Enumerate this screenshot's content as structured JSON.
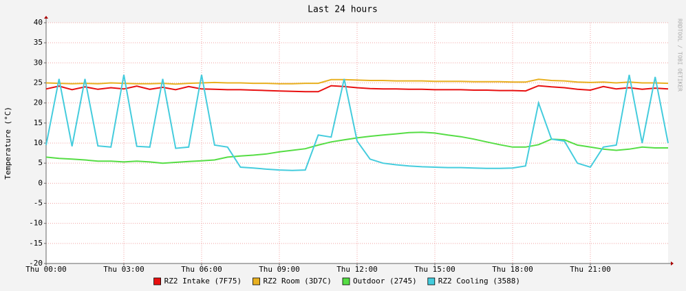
{
  "chart_data": {
    "type": "line",
    "title": "Last 24 hours",
    "ylabel": "Temperature (°C)",
    "watermark": "RRDTOOL / TOBI OETIKER",
    "grid": true,
    "legend": "bottom",
    "x": [
      0,
      0.5,
      1,
      1.5,
      2,
      2.5,
      3,
      3.5,
      4,
      4.5,
      5,
      5.5,
      6,
      6.5,
      7,
      7.5,
      8,
      8.5,
      9,
      9.5,
      10,
      10.5,
      11,
      11.5,
      12,
      12.5,
      13,
      13.5,
      14,
      14.5,
      15,
      15.5,
      16,
      16.5,
      17,
      17.5,
      18,
      18.5,
      19,
      19.5,
      20,
      20.5,
      21,
      21.5,
      22,
      22.5,
      23,
      23.5,
      24
    ],
    "xlim": [
      0,
      24
    ],
    "xticks": [
      {
        "value": 0,
        "label": "Thu 00:00"
      },
      {
        "value": 3,
        "label": "Thu 03:00"
      },
      {
        "value": 6,
        "label": "Thu 06:00"
      },
      {
        "value": 9,
        "label": "Thu 09:00"
      },
      {
        "value": 12,
        "label": "Thu 12:00"
      },
      {
        "value": 15,
        "label": "Thu 15:00"
      },
      {
        "value": 18,
        "label": "Thu 18:00"
      },
      {
        "value": 21,
        "label": "Thu 21:00"
      }
    ],
    "ylim": [
      -20,
      40
    ],
    "yticks": [
      -20,
      -15,
      -10,
      -5,
      0,
      5,
      10,
      15,
      20,
      25,
      30,
      35,
      40
    ],
    "series": [
      {
        "name": "RZ2 Intake (7F75)",
        "color": "#e81010",
        "values": [
          23.5,
          24.2,
          23.3,
          24,
          23.4,
          23.8,
          23.5,
          24.2,
          23.4,
          23.9,
          23.3,
          24.1,
          23.5,
          23.4,
          23.3,
          23.3,
          23.2,
          23.1,
          23,
          22.9,
          22.8,
          22.8,
          24.3,
          24.1,
          23.8,
          23.6,
          23.5,
          23.5,
          23.4,
          23.4,
          23.3,
          23.3,
          23.3,
          23.2,
          23.2,
          23.1,
          23.1,
          23,
          24.3,
          24,
          23.8,
          23.4,
          23.2,
          24.1,
          23.5,
          23.8,
          23.4,
          23.7,
          23.5
        ]
      },
      {
        "name": "RZ2 Room (3D7C)",
        "color": "#e8b020",
        "values": [
          25,
          24.9,
          24.8,
          24.9,
          24.8,
          25,
          24.9,
          24.8,
          24.8,
          24.9,
          24.7,
          24.9,
          25,
          25.1,
          25,
          25,
          24.9,
          24.9,
          24.8,
          24.8,
          24.9,
          24.9,
          25.8,
          25.8,
          25.7,
          25.6,
          25.6,
          25.5,
          25.5,
          25.5,
          25.4,
          25.4,
          25.4,
          25.3,
          25.3,
          25.3,
          25.2,
          25.2,
          25.9,
          25.6,
          25.5,
          25.2,
          25.1,
          25.2,
          25,
          25.2,
          25,
          25,
          24.9
        ]
      },
      {
        "name": "Outdoor (2745)",
        "color": "#55dd44",
        "values": [
          6.5,
          6.2,
          6,
          5.8,
          5.5,
          5.5,
          5.3,
          5.5,
          5.3,
          5,
          5.2,
          5.4,
          5.6,
          5.8,
          6.5,
          6.8,
          7,
          7.3,
          7.8,
          8.2,
          8.6,
          9.5,
          10.3,
          10.8,
          11.3,
          11.7,
          12,
          12.3,
          12.6,
          12.7,
          12.5,
          12,
          11.6,
          11,
          10.3,
          9.6,
          9,
          9,
          9.6,
          11,
          10.8,
          9.5,
          9,
          8.5,
          8.2,
          8.5,
          9,
          8.8,
          8.8
        ]
      },
      {
        "name": "RZ2 Cooling (3588)",
        "color": "#44ccdd",
        "values": [
          9.5,
          26,
          9.2,
          26,
          9.3,
          9,
          27,
          9.2,
          9,
          26,
          8.7,
          9,
          27,
          9.5,
          9,
          4,
          3.8,
          3.5,
          3.3,
          3.2,
          3.3,
          12,
          11.5,
          26,
          10.5,
          6,
          5,
          4.6,
          4.3,
          4.1,
          4,
          3.9,
          3.9,
          3.8,
          3.7,
          3.7,
          3.8,
          4.3,
          20,
          11,
          10.5,
          5,
          4,
          9,
          9.5,
          27,
          10,
          26.5,
          10
        ]
      }
    ]
  }
}
